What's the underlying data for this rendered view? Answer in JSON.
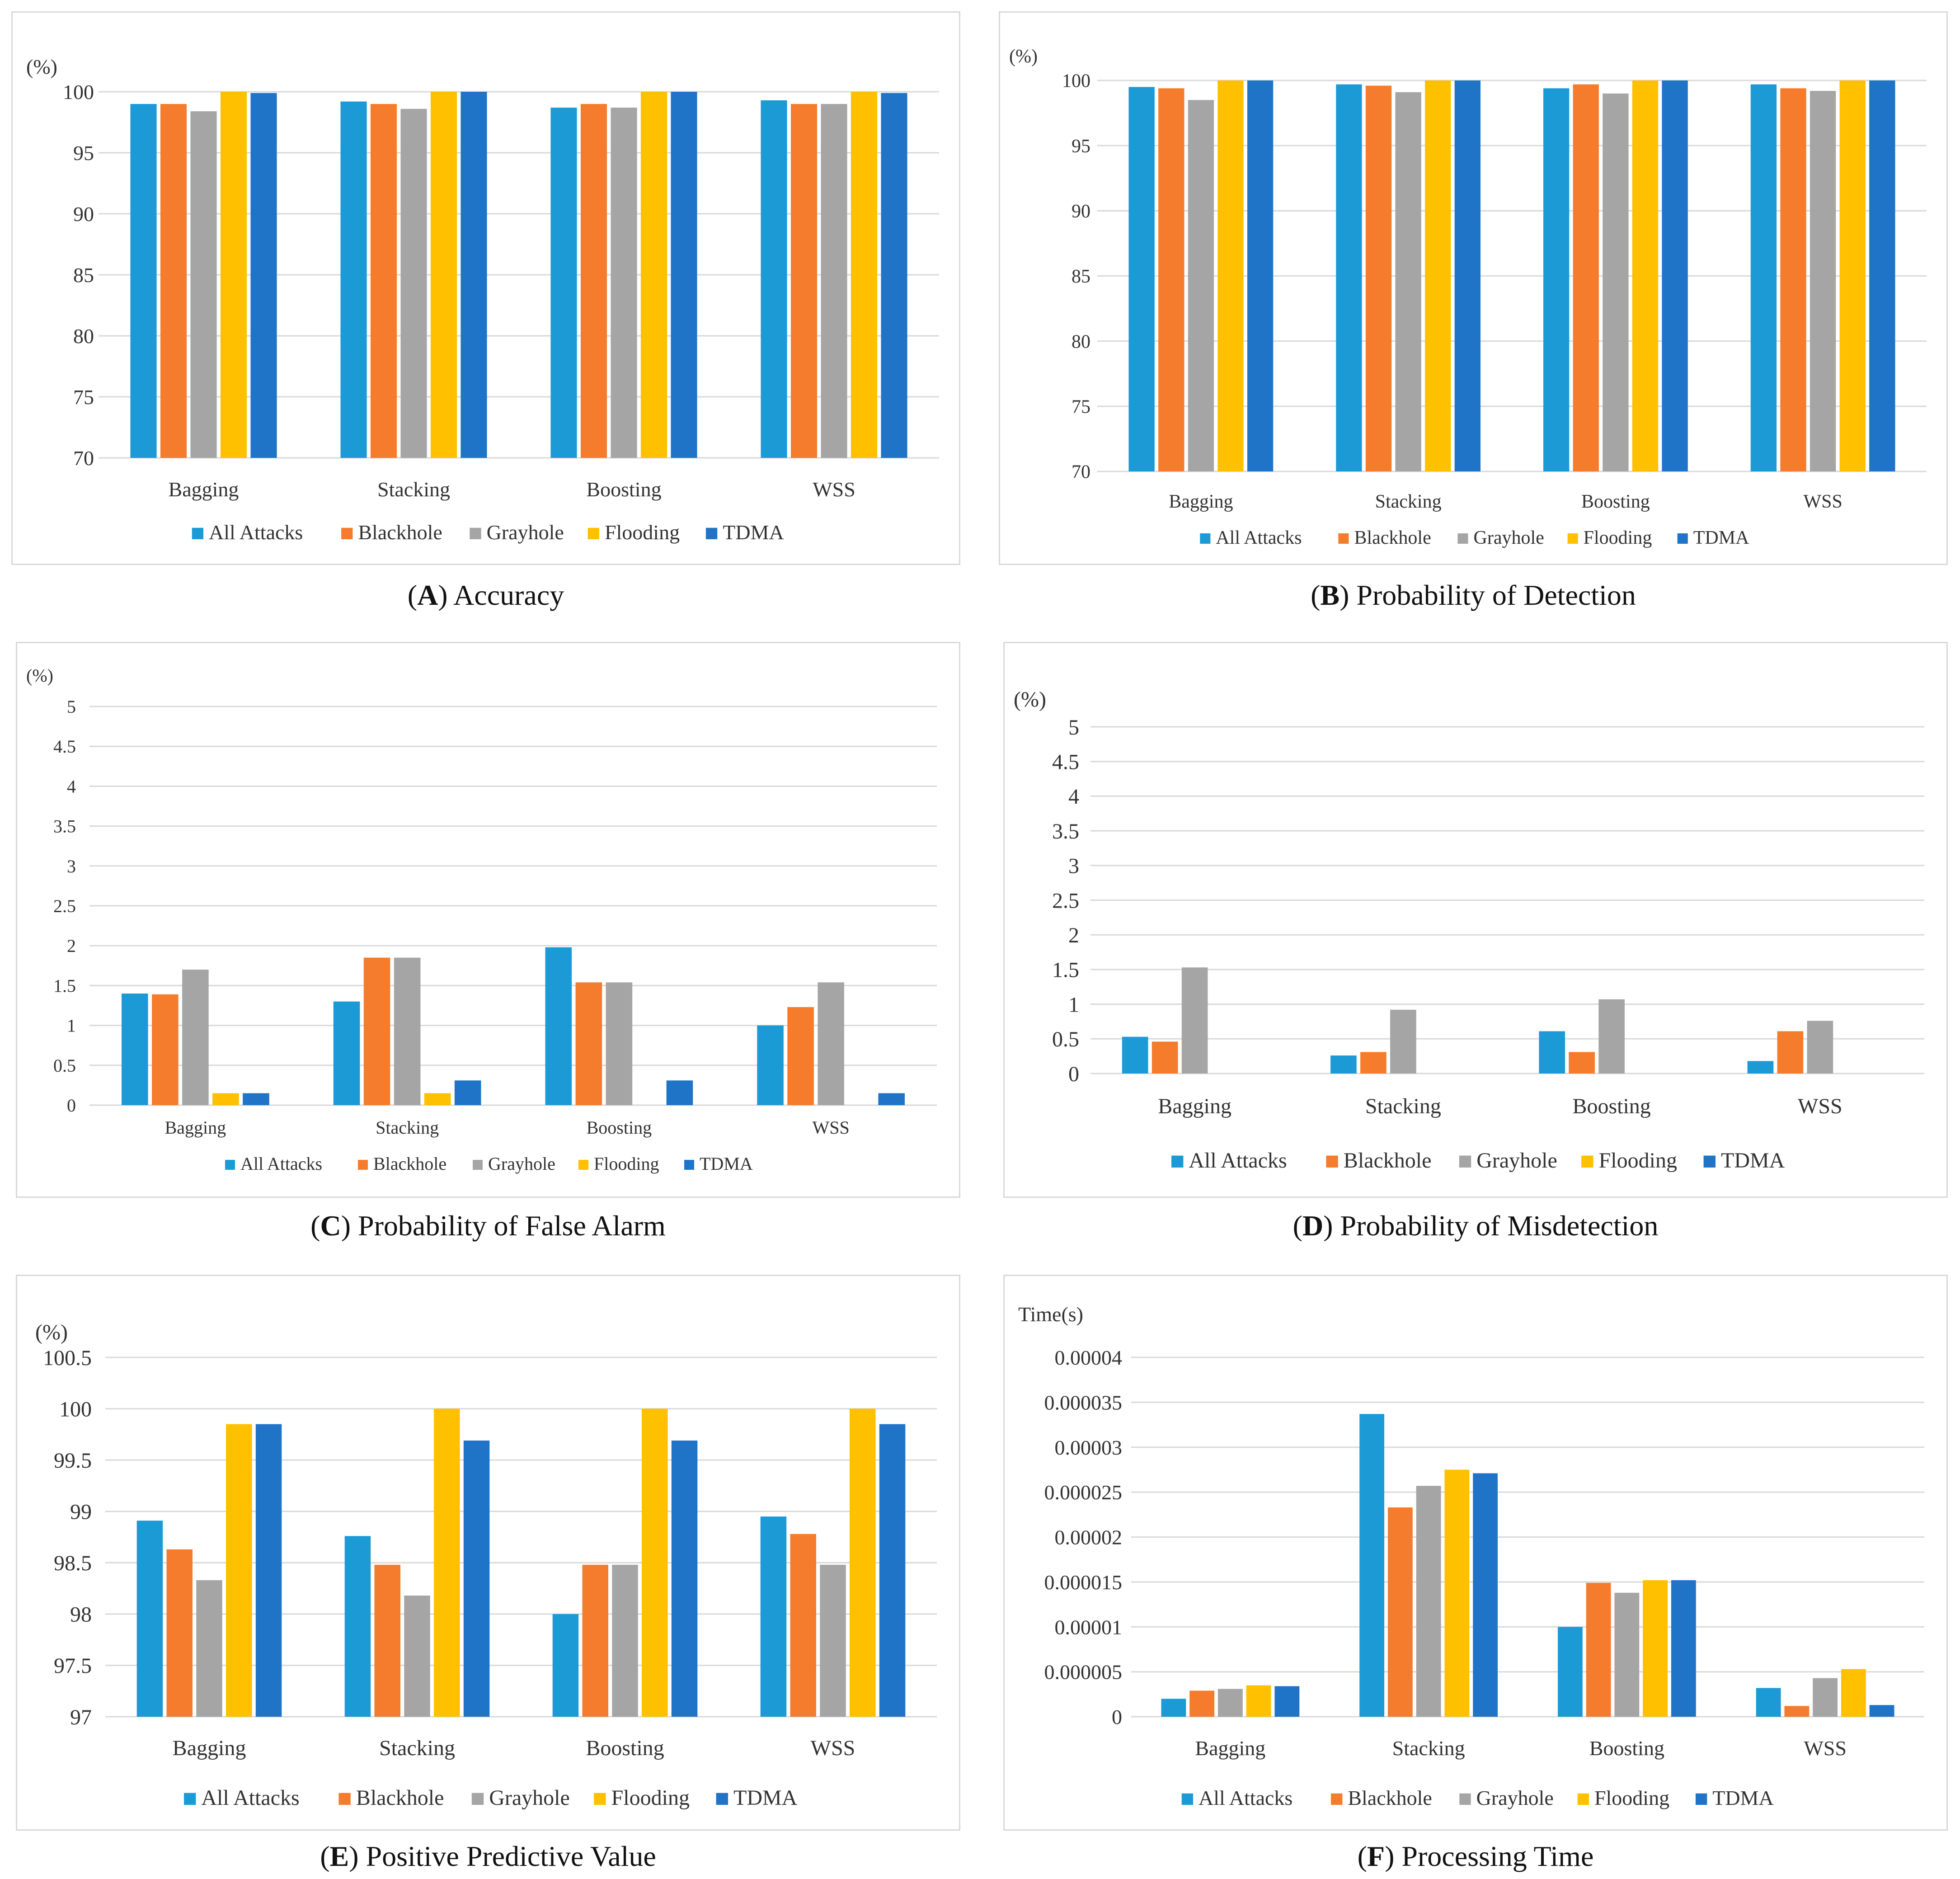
{
  "colors": {
    "All Attacks": "#1c9ad6",
    "Blackhole": "#f47c2c",
    "Grayhole": "#a5a5a5",
    "Flooding": "#ffc000",
    "TDMA": "#1f74c8",
    "grid": "#d9d9d9"
  },
  "chart_data": [
    {
      "type": "bar",
      "caption_letter": "A",
      "caption_text": "Accuracy",
      "ylabel": "(%)",
      "ylim": [
        70,
        100
      ],
      "ticks": [
        "70",
        "75",
        "80",
        "85",
        "90",
        "95",
        "100"
      ],
      "categories": [
        "Bagging",
        "Stacking",
        "Boosting",
        "WSS"
      ],
      "series": [
        {
          "name": "All Attacks",
          "values": [
            99.0,
            99.2,
            98.7,
            99.3
          ]
        },
        {
          "name": "Blackhole",
          "values": [
            99.0,
            99.0,
            99.0,
            99.0
          ]
        },
        {
          "name": "Grayhole",
          "values": [
            98.4,
            98.6,
            98.7,
            99.0
          ]
        },
        {
          "name": "Flooding",
          "values": [
            100,
            100,
            100,
            100
          ]
        },
        {
          "name": "TDMA",
          "values": [
            99.9,
            100,
            100,
            99.9
          ]
        }
      ],
      "legend": "bottom"
    },
    {
      "type": "bar",
      "caption_letter": "B",
      "caption_text": "Probability of Detection",
      "ylabel": "(%)",
      "ylim": [
        70,
        100
      ],
      "ticks": [
        "70",
        "75",
        "80",
        "85",
        "90",
        "95",
        "100"
      ],
      "categories": [
        "Bagging",
        "Stacking",
        "Boosting",
        "WSS"
      ],
      "series": [
        {
          "name": "All Attacks",
          "values": [
            99.5,
            99.7,
            99.4,
            99.7
          ]
        },
        {
          "name": "Blackhole",
          "values": [
            99.4,
            99.6,
            99.7,
            99.4
          ]
        },
        {
          "name": "Grayhole",
          "values": [
            98.5,
            99.1,
            99.0,
            99.2
          ]
        },
        {
          "name": "Flooding",
          "values": [
            100,
            100,
            100,
            100
          ]
        },
        {
          "name": "TDMA",
          "values": [
            100,
            100,
            100,
            100
          ]
        }
      ],
      "legend": "bottom"
    },
    {
      "type": "bar",
      "caption_letter": "C",
      "caption_text": "Probability of False Alarm",
      "ylabel": "(%)",
      "ylim": [
        0,
        5
      ],
      "ticks": [
        "0",
        "0.5",
        "1",
        "1.5",
        "2",
        "2.5",
        "3",
        "3.5",
        "4",
        "4.5",
        "5"
      ],
      "categories": [
        "Bagging",
        "Stacking",
        "Boosting",
        "WSS"
      ],
      "series": [
        {
          "name": "All Attacks",
          "values": [
            1.4,
            1.3,
            1.98,
            1.0
          ]
        },
        {
          "name": "Blackhole",
          "values": [
            1.39,
            1.85,
            1.54,
            1.23
          ]
        },
        {
          "name": "Grayhole",
          "values": [
            1.7,
            1.85,
            1.54,
            1.54
          ]
        },
        {
          "name": "Flooding",
          "values": [
            0.15,
            0.15,
            0,
            0
          ]
        },
        {
          "name": "TDMA",
          "values": [
            0.15,
            0.31,
            0.31,
            0.15
          ]
        }
      ],
      "legend": "bottom"
    },
    {
      "type": "bar",
      "caption_letter": "D",
      "caption_text": "Probability of Misdetection",
      "ylabel": "(%)",
      "ylim": [
        0,
        5
      ],
      "ticks": [
        "0",
        "0.5",
        "1",
        "1.5",
        "2",
        "2.5",
        "3",
        "3.5",
        "4",
        "4.5",
        "5"
      ],
      "categories": [
        "Bagging",
        "Stacking",
        "Boosting",
        "WSS"
      ],
      "series": [
        {
          "name": "All Attacks",
          "values": [
            0.53,
            0.26,
            0.61,
            0.18
          ]
        },
        {
          "name": "Blackhole",
          "values": [
            0.46,
            0.31,
            0.31,
            0.61
          ]
        },
        {
          "name": "Grayhole",
          "values": [
            1.53,
            0.92,
            1.07,
            0.76
          ]
        },
        {
          "name": "Flooding",
          "values": [
            0,
            0,
            0,
            0
          ]
        },
        {
          "name": "TDMA",
          "values": [
            0,
            0,
            0,
            0
          ]
        }
      ],
      "legend": "bottom"
    },
    {
      "type": "bar",
      "caption_letter": "E",
      "caption_text": "Positive Predictive Value",
      "ylabel": "(%)",
      "ylim": [
        97,
        100.5
      ],
      "ticks": [
        "97",
        "97.5",
        "98",
        "98.5",
        "99",
        "99.5",
        "100",
        "100.5"
      ],
      "categories": [
        "Bagging",
        "Stacking",
        "Boosting",
        "WSS"
      ],
      "series": [
        {
          "name": "All Attacks",
          "values": [
            98.91,
            98.76,
            98.0,
            98.95
          ]
        },
        {
          "name": "Blackhole",
          "values": [
            98.63,
            98.48,
            98.48,
            98.78
          ]
        },
        {
          "name": "Grayhole",
          "values": [
            98.33,
            98.18,
            98.48,
            98.48
          ]
        },
        {
          "name": "Flooding",
          "values": [
            99.85,
            100,
            100,
            100
          ]
        },
        {
          "name": "TDMA",
          "values": [
            99.85,
            99.69,
            99.69,
            99.85
          ]
        }
      ],
      "legend": "bottom"
    },
    {
      "type": "bar",
      "caption_letter": "F",
      "caption_text": "Processing Time",
      "ylabel": "Time(s)",
      "ylim": [
        0,
        4e-05
      ],
      "ticks": [
        "0",
        "0.000005",
        "0.00001",
        "0.000015",
        "0.00002",
        "0.000025",
        "0.00003",
        "0.000035",
        "0.00004"
      ],
      "categories": [
        "Bagging",
        "Stacking",
        "Boosting",
        "WSS"
      ],
      "series": [
        {
          "name": "All Attacks",
          "values": [
            2e-06,
            3.37e-05,
            1e-05,
            3.2e-06
          ]
        },
        {
          "name": "Blackhole",
          "values": [
            2.9e-06,
            2.33e-05,
            1.49e-05,
            1.2e-06
          ]
        },
        {
          "name": "Grayhole",
          "values": [
            3.1e-06,
            2.57e-05,
            1.38e-05,
            4.3e-06
          ]
        },
        {
          "name": "Flooding",
          "values": [
            3.5e-06,
            2.75e-05,
            1.52e-05,
            5.3e-06
          ]
        },
        {
          "name": "TDMA",
          "values": [
            3.4e-06,
            2.71e-05,
            1.52e-05,
            1.3e-06
          ]
        }
      ],
      "legend": "bottom"
    }
  ]
}
